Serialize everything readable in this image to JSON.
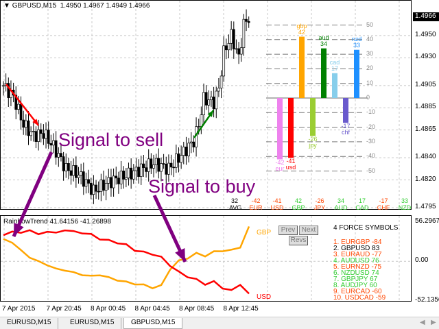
{
  "header": {
    "symbol": "GBPUSD,M15",
    "ohlc": "1.4950 1.4967 1.4949 1.4966"
  },
  "price_axis": {
    "current": "1.4966",
    "ticks": [
      "1.4966",
      "1.4950",
      "1.4930",
      "1.4905",
      "1.4885",
      "1.4865",
      "1.4840",
      "1.4820",
      "1.4795"
    ],
    "min": 1.479,
    "max": 1.498
  },
  "price_path": [
    [
      0,
      1.4905
    ],
    [
      4,
      1.4895
    ],
    [
      8,
      1.487
    ],
    [
      12,
      1.486
    ],
    [
      16,
      1.4862
    ],
    [
      20,
      1.485
    ],
    [
      25,
      1.483
    ],
    [
      30,
      1.4825
    ],
    [
      36,
      1.481
    ],
    [
      42,
      1.4818
    ],
    [
      50,
      1.4825
    ],
    [
      60,
      1.4835
    ],
    [
      66,
      1.483
    ],
    [
      72,
      1.4845
    ],
    [
      76,
      1.4855
    ],
    [
      78,
      1.487
    ],
    [
      80,
      1.4893
    ],
    [
      84,
      1.489
    ],
    [
      86,
      1.4902
    ],
    [
      88,
      1.4935
    ],
    [
      91,
      1.495
    ],
    [
      94,
      1.493
    ],
    [
      96,
      1.496
    ],
    [
      98,
      1.4966
    ]
  ],
  "annotations": {
    "sell": "Signal to sell",
    "buy": "Signal to buy"
  },
  "strength": {
    "axis": [
      "50",
      "40",
      "30",
      "20",
      "10",
      "0",
      "-10",
      "-20",
      "-30",
      "-40",
      "-50"
    ],
    "bars": [
      {
        "label": "eur",
        "value": -42,
        "color": "#ee82ee"
      },
      {
        "label": "usd",
        "value": -41,
        "color": "#ff0000"
      },
      {
        "label": "gbp",
        "value": 42,
        "color": "#ffa500"
      },
      {
        "label": "jpy",
        "value": -26,
        "color": "#9acd32"
      },
      {
        "label": "aud",
        "value": 34,
        "color": "#008000"
      },
      {
        "label": "cad",
        "value": 17,
        "color": "#87ceeb"
      },
      {
        "label": "chf",
        "value": -17,
        "color": "#6a5acd"
      },
      {
        "label": "nzd",
        "value": 33,
        "color": "#1e90ff"
      }
    ],
    "avg_label": "AVG.",
    "avg_value": "32",
    "summary": [
      {
        "cur": "EUR",
        "val": "-42",
        "color": "#ff4500"
      },
      {
        "cur": "USD",
        "val": "-41",
        "color": "#ff4500"
      },
      {
        "cur": "GBP",
        "val": "42",
        "color": "#32cd32"
      },
      {
        "cur": "JPY",
        "val": "-26",
        "color": "#ff4500"
      },
      {
        "cur": "AUD",
        "val": "34",
        "color": "#32cd32"
      },
      {
        "cur": "CAD",
        "val": "17",
        "color": "#32cd32"
      },
      {
        "cur": "CHF",
        "val": "-17",
        "color": "#ff4500"
      },
      {
        "cur": "NZD",
        "val": "33",
        "color": "#32cd32"
      }
    ]
  },
  "indicator": {
    "title": "RainbowTrend 41.64156 -41.26898",
    "max_label": "56.29679",
    "zero_label": "0.00",
    "min_label": "-52.1356",
    "min": -52.1356,
    "max": 56.29679,
    "gbp_label": "GBP",
    "usd_label": "USD",
    "gbp": [
      30,
      25,
      15,
      5,
      0,
      -5,
      -10,
      -12,
      -15,
      -18,
      -20,
      -18,
      -22,
      -25,
      -28,
      -30,
      -32,
      -35,
      -33,
      -10,
      0,
      5,
      10,
      8,
      12,
      15,
      14,
      20,
      45
    ],
    "usd": [
      35,
      40,
      38,
      42,
      36,
      40,
      38,
      42,
      40,
      38,
      36,
      30,
      28,
      25,
      22,
      15,
      12,
      10,
      5,
      -5,
      -15,
      -20,
      -25,
      -30,
      -28,
      -35,
      -40,
      -30,
      -45
    ],
    "buttons": {
      "prev": "Prev",
      "next": "Next",
      "revs": "Revs"
    },
    "force_title": "4 FORCE SYMBOLS",
    "force": [
      {
        "t": "1. EURGBP  -84",
        "c": "#ff4500"
      },
      {
        "t": "2. GBPUSD  83",
        "c": "#000000"
      },
      {
        "t": "3. EURAUD  -77",
        "c": "#ff4500"
      },
      {
        "t": "4. AUDUSD  76",
        "c": "#32cd32"
      },
      {
        "t": "5. EURNZD  -75",
        "c": "#ff4500"
      },
      {
        "t": "6. NZDUSD  74",
        "c": "#32cd32"
      },
      {
        "t": "7. GBPJPY  67",
        "c": "#32cd32"
      },
      {
        "t": "8. AUDJPY  60",
        "c": "#32cd32"
      },
      {
        "t": "9. EURCAD  -60",
        "c": "#ff4500"
      },
      {
        "t": "10. USDCAD  -59",
        "c": "#ff4500"
      }
    ]
  },
  "time_axis": [
    "7 Apr 2015",
    "7 Apr 20:45",
    "8 Apr 00:45",
    "8 Apr 04:45",
    "8 Apr 08:45",
    "8 Apr 12:45"
  ],
  "tabs": [
    "EURUSD,M15",
    "EURUSD,M15",
    "GBPUSD,M15"
  ]
}
